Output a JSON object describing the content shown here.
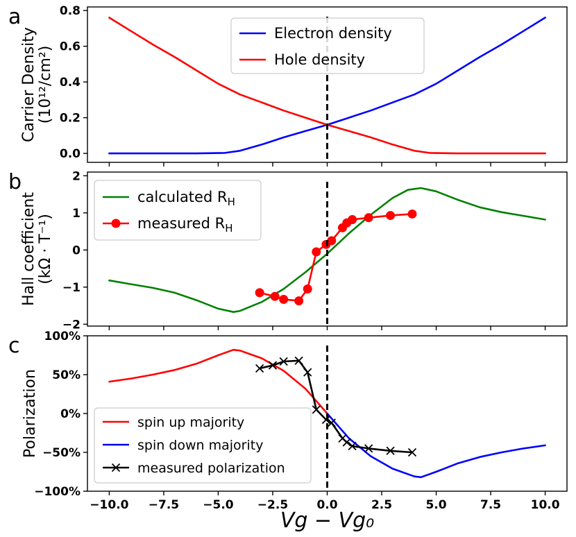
{
  "chart_data": [
    {
      "panel_label": "a",
      "type": "line",
      "ylabel_line1": "Carrier Density",
      "ylabel_line2": "(10¹²/cm²)",
      "ylim": [
        -0.05,
        0.82
      ],
      "yticks": [
        0.0,
        0.2,
        0.4,
        0.6,
        0.8
      ],
      "ytick_labels": [
        "0.0",
        "0.2",
        "0.4",
        "0.6",
        "0.8"
      ],
      "legend_position": "top-center",
      "series": [
        {
          "name": "Electron  density",
          "color": "#0000ff",
          "x": [
            -10,
            -6,
            -4.7,
            -4,
            -3,
            -2,
            -1,
            0,
            1,
            2,
            3,
            4,
            5,
            6,
            7,
            8,
            9,
            10
          ],
          "y": [
            0,
            0,
            0.003,
            0.015,
            0.05,
            0.09,
            0.125,
            0.16,
            0.2,
            0.24,
            0.285,
            0.33,
            0.39,
            0.465,
            0.54,
            0.61,
            0.685,
            0.76
          ]
        },
        {
          "name": "Hole  density",
          "color": "#ff0000",
          "x": [
            -10,
            -9,
            -8,
            -7,
            -6,
            -5,
            -4,
            -3,
            -2,
            -1,
            0,
            1,
            2,
            3,
            4,
            4.7,
            6,
            10
          ],
          "y": [
            0.76,
            0.685,
            0.61,
            0.54,
            0.465,
            0.39,
            0.33,
            0.285,
            0.24,
            0.2,
            0.16,
            0.125,
            0.09,
            0.05,
            0.015,
            0.003,
            0,
            0
          ]
        }
      ],
      "vline": 0
    },
    {
      "panel_label": "b",
      "type": "line",
      "ylabel_line1": "Hall coefficient",
      "ylabel_line2": "(kΩ · T⁻¹)",
      "ylim": [
        -2.05,
        2.1
      ],
      "yticks": [
        -2,
        -1,
        0,
        1,
        2
      ],
      "ytick_labels": [
        "−2",
        "−1",
        "0",
        "1",
        "2"
      ],
      "legend_position": "upper-left",
      "series": [
        {
          "name": "calculated R",
          "subscript": "H",
          "color": "#008000",
          "x": [
            -10,
            -9,
            -8,
            -7,
            -6,
            -5,
            -4.3,
            -4,
            -3,
            -2,
            -1,
            0,
            1,
            2,
            3,
            3.7,
            4.3,
            5,
            6,
            7,
            8,
            9,
            10
          ],
          "y": [
            -0.82,
            -0.92,
            -1.02,
            -1.15,
            -1.35,
            -1.58,
            -1.67,
            -1.64,
            -1.4,
            -1.05,
            -0.6,
            -0.1,
            0.45,
            0.95,
            1.4,
            1.62,
            1.67,
            1.58,
            1.35,
            1.15,
            1.02,
            0.92,
            0.82
          ]
        },
        {
          "name": "measured R",
          "subscript": "H",
          "color": "#ff0000",
          "marker": "circle",
          "x": [
            -3.1,
            -2.4,
            -2.0,
            -1.3,
            -0.9,
            -0.5,
            -0.05,
            0.2,
            0.7,
            0.9,
            1.15,
            1.9,
            2.9,
            3.9
          ],
          "y": [
            -1.15,
            -1.25,
            -1.33,
            -1.37,
            -1.05,
            -0.05,
            0.15,
            0.25,
            0.6,
            0.73,
            0.82,
            0.87,
            0.93,
            0.97
          ]
        }
      ],
      "vline": 0
    },
    {
      "panel_label": "c",
      "type": "line",
      "ylabel": "Polarization",
      "xlabel": "Vg − Vg₀",
      "ylim": [
        -100,
        100
      ],
      "yticks": [
        -100,
        -50,
        0,
        50,
        100
      ],
      "ytick_labels": [
        "−100%",
        "−50%",
        "0%",
        "50%",
        "100%"
      ],
      "xlim": [
        -11.0,
        11.0
      ],
      "xticks": [
        -10,
        -7.5,
        -5,
        -2.5,
        0,
        2.5,
        5,
        7.5,
        10
      ],
      "xtick_labels": [
        "−10.0",
        "−7.5",
        "−5.0",
        "−2.5",
        "0.0",
        "2.5",
        "5.0",
        "7.5",
        "10.0"
      ],
      "legend_position": "lower-left",
      "series": [
        {
          "name": "spin up majority",
          "color": "#ff0000",
          "x": [
            -10,
            -9,
            -8,
            -7,
            -6,
            -5,
            -4.3,
            -4,
            -3,
            -2,
            -1,
            0
          ],
          "y": [
            41,
            45,
            50,
            56,
            64,
            75,
            82,
            81,
            71,
            55,
            32,
            0
          ]
        },
        {
          "name": "spin down majority",
          "color": "#0000ff",
          "x": [
            0,
            1,
            2,
            3,
            4,
            4.3,
            5,
            6,
            7,
            8,
            9,
            10
          ],
          "y": [
            0,
            -32,
            -55,
            -71,
            -81,
            -82,
            -75,
            -64,
            -56,
            -50,
            -45,
            -41
          ]
        },
        {
          "name": "measured polarization",
          "color": "#000000",
          "marker": "x",
          "x": [
            -3.1,
            -2.5,
            -2.0,
            -1.3,
            -0.9,
            -0.5,
            -0.05,
            0.2,
            0.7,
            0.9,
            1.15,
            1.9,
            2.9,
            3.9
          ],
          "y": [
            58,
            62,
            67,
            68,
            53,
            5,
            -8,
            -12,
            -32,
            -37,
            -42,
            -45,
            -48,
            -50
          ]
        }
      ],
      "vline": 0
    }
  ]
}
